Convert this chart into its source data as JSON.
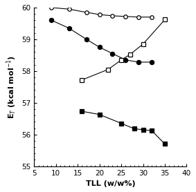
{
  "open_circle": {
    "x": [
      9,
      13,
      17,
      20,
      23,
      26,
      29,
      32
    ],
    "y": [
      60.0,
      59.95,
      59.85,
      59.78,
      59.74,
      59.72,
      59.7,
      59.7
    ]
  },
  "filled_circle": {
    "x": [
      9,
      13,
      17,
      20,
      23,
      26,
      29,
      32
    ],
    "y": [
      59.6,
      59.35,
      59.0,
      58.75,
      58.55,
      58.35,
      58.28,
      58.28
    ]
  },
  "open_square": {
    "x": [
      16,
      22,
      25,
      27,
      30,
      35
    ],
    "y": [
      57.72,
      58.05,
      58.35,
      58.52,
      58.85,
      59.62
    ]
  },
  "filled_square": {
    "x": [
      16,
      20,
      25,
      28,
      30,
      32,
      35
    ],
    "y": [
      56.73,
      56.63,
      56.35,
      56.18,
      56.15,
      56.12,
      55.7
    ]
  },
  "xlim": [
    5,
    40
  ],
  "ylim": [
    55,
    60
  ],
  "xticks": [
    5,
    10,
    15,
    20,
    25,
    30,
    35,
    40
  ],
  "yticks": [
    55,
    56,
    57,
    58,
    59,
    60
  ],
  "xlabel": "TLL (w/w%)",
  "ylabel": "E$_{T}$ (kcal mol$^{-1}$)"
}
